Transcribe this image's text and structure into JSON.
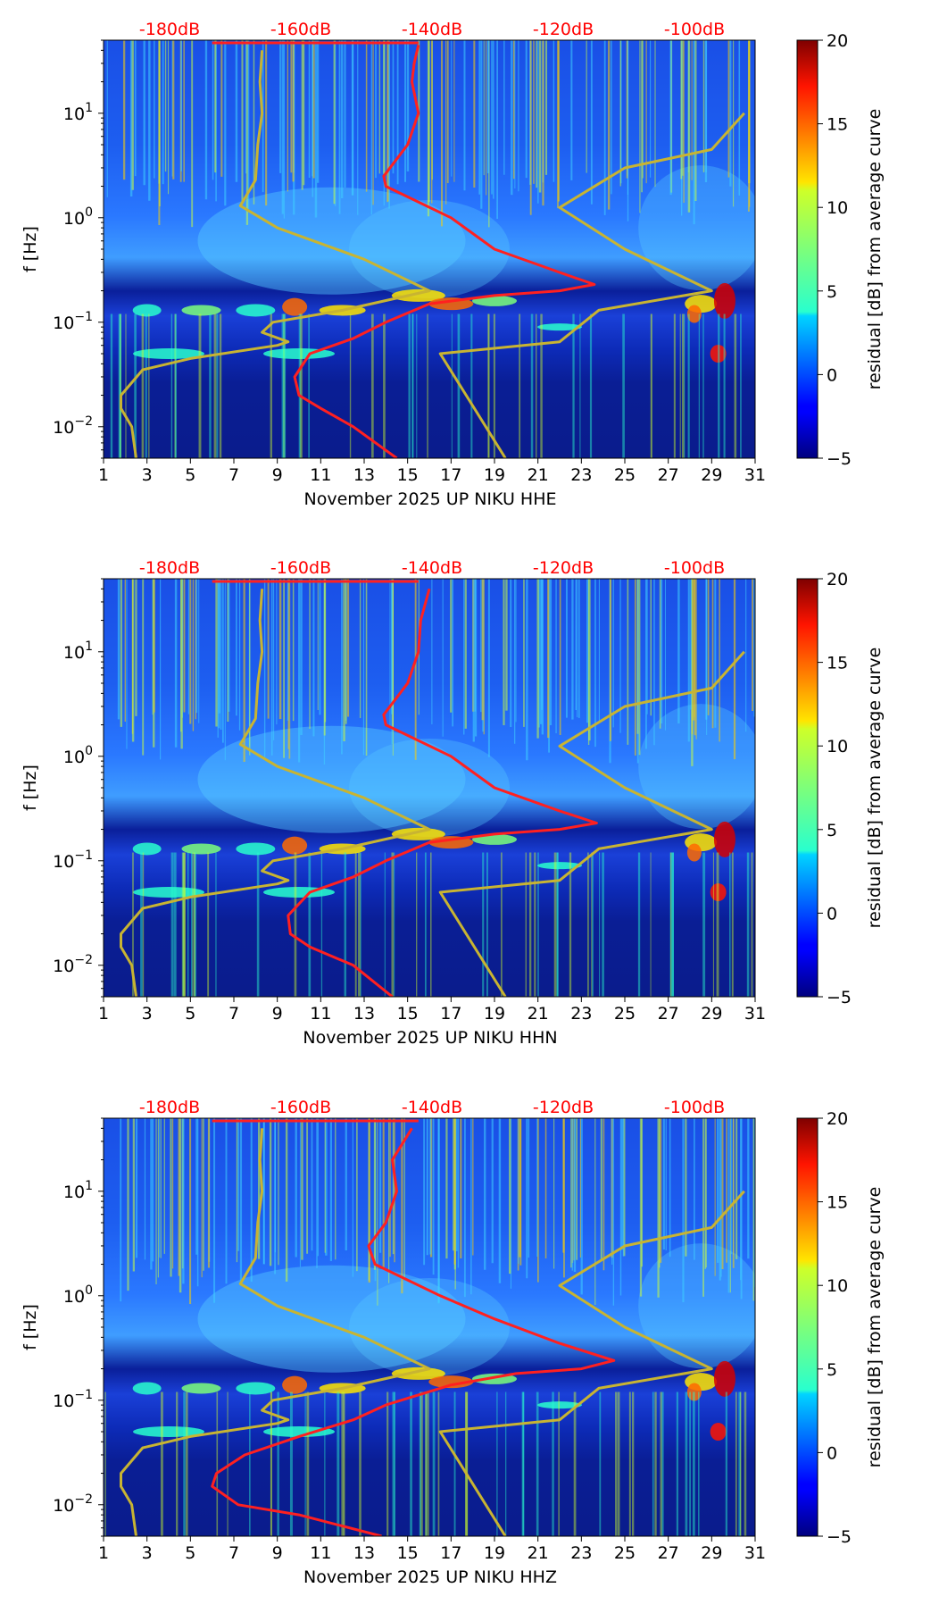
{
  "chart_data": [
    {
      "type": "heatmap",
      "xlabel": "November 2025 UP NIKU  HHE",
      "ylabel": "f [Hz]",
      "x_ticks": [
        "1",
        "3",
        "5",
        "7",
        "9",
        "11",
        "13",
        "15",
        "17",
        "19",
        "21",
        "23",
        "25",
        "27",
        "29",
        "31"
      ],
      "xlim": [
        1,
        31
      ],
      "y_scale": "log",
      "ylim": [
        0.005,
        50
      ],
      "y_ticks": [
        {
          "base": "10",
          "exp": "1",
          "value": 10
        },
        {
          "base": "10",
          "exp": "0",
          "value": 1
        },
        {
          "base": "10",
          "exp": "−1",
          "value": 0.1
        },
        {
          "base": "10",
          "exp": "−2",
          "value": 0.01
        }
      ],
      "db_labels": [
        "-180dB",
        "-160dB",
        "-140dB",
        "-120dB",
        "-100dB"
      ],
      "colorbar": {
        "label": "residual [dB] from average curve",
        "range": [
          -5,
          20
        ],
        "ticks": [
          "20",
          "15",
          "10",
          "5",
          "0",
          "−5"
        ],
        "colormap": "jet"
      },
      "series": [
        {
          "color": "#ff2020",
          "points": [
            [
              14.5,
              0.005
            ],
            [
              12.5,
              0.01
            ],
            [
              11,
              0.015
            ],
            [
              10,
              0.02
            ],
            [
              9.8,
              0.03
            ],
            [
              10.5,
              0.05
            ],
            [
              12.5,
              0.07
            ],
            [
              14,
              0.1
            ],
            [
              16,
              0.15
            ],
            [
              19,
              0.18
            ],
            [
              22,
              0.2
            ],
            [
              23.6,
              0.23
            ],
            [
              22,
              0.3
            ],
            [
              19,
              0.5
            ],
            [
              17,
              1
            ],
            [
              14,
              2
            ],
            [
              13.9,
              2.5
            ],
            [
              15,
              5
            ],
            [
              15.5,
              10
            ],
            [
              15.2,
              20
            ],
            [
              15.3,
              30
            ],
            [
              15.5,
              45
            ]
          ]
        },
        {
          "color": "#c8b432",
          "points": [
            [
              2.5,
              0.005
            ],
            [
              2.3,
              0.01
            ],
            [
              1.8,
              0.015
            ],
            [
              1.8,
              0.02
            ],
            [
              2.8,
              0.035
            ],
            [
              5,
              0.045
            ],
            [
              9,
              0.06
            ],
            [
              9.5,
              0.065
            ],
            [
              8.3,
              0.08
            ],
            [
              8.8,
              0.1
            ],
            [
              12,
              0.13
            ],
            [
              16,
              0.2
            ],
            [
              13,
              0.4
            ],
            [
              9,
              0.8
            ],
            [
              7.3,
              1.3
            ],
            [
              8,
              2.3
            ],
            [
              8.1,
              5
            ],
            [
              8.3,
              10
            ],
            [
              8.2,
              20
            ],
            [
              8.3,
              40
            ]
          ]
        },
        {
          "color": "#c8b432",
          "points": [
            [
              19.5,
              0.005
            ],
            [
              16.5,
              0.05
            ],
            [
              22,
              0.065
            ],
            [
              23.8,
              0.13
            ],
            [
              29,
              0.2
            ],
            [
              25,
              0.5
            ],
            [
              22,
              1.25
            ],
            [
              25,
              3
            ],
            [
              29,
              4.5
            ],
            [
              30.5,
              10
            ]
          ]
        }
      ]
    },
    {
      "type": "heatmap",
      "xlabel": "November 2025 UP NIKU  HHN",
      "ylabel": "f [Hz]",
      "x_ticks": [
        "1",
        "3",
        "5",
        "7",
        "9",
        "11",
        "13",
        "15",
        "17",
        "19",
        "21",
        "23",
        "25",
        "27",
        "29",
        "31"
      ],
      "xlim": [
        1,
        31
      ],
      "y_scale": "log",
      "ylim": [
        0.005,
        50
      ],
      "y_ticks": [
        {
          "base": "10",
          "exp": "1",
          "value": 10
        },
        {
          "base": "10",
          "exp": "0",
          "value": 1
        },
        {
          "base": "10",
          "exp": "−1",
          "value": 0.1
        },
        {
          "base": "10",
          "exp": "−2",
          "value": 0.01
        }
      ],
      "db_labels": [
        "-180dB",
        "-160dB",
        "-140dB",
        "-120dB",
        "-100dB"
      ],
      "colorbar": {
        "label": "residual [dB] from average curve",
        "range": [
          -5,
          20
        ],
        "ticks": [
          "20",
          "15",
          "10",
          "5",
          "0",
          "−5"
        ],
        "colormap": "jet"
      },
      "series": [
        {
          "color": "#ff2020",
          "points": [
            [
              14.3,
              0.005
            ],
            [
              12.5,
              0.01
            ],
            [
              10.5,
              0.015
            ],
            [
              9.6,
              0.02
            ],
            [
              9.5,
              0.03
            ],
            [
              10.5,
              0.05
            ],
            [
              12.5,
              0.07
            ],
            [
              14,
              0.1
            ],
            [
              16,
              0.15
            ],
            [
              19,
              0.18
            ],
            [
              22,
              0.2
            ],
            [
              23.7,
              0.23
            ],
            [
              22,
              0.3
            ],
            [
              19,
              0.5
            ],
            [
              17,
              1
            ],
            [
              14,
              2
            ],
            [
              13.9,
              2.5
            ],
            [
              15,
              5
            ],
            [
              15.5,
              10
            ],
            [
              15.6,
              20
            ],
            [
              16,
              40
            ]
          ]
        },
        {
          "color": "#c8b432",
          "points": [
            [
              2.5,
              0.005
            ],
            [
              2.3,
              0.01
            ],
            [
              1.8,
              0.015
            ],
            [
              1.8,
              0.02
            ],
            [
              2.8,
              0.035
            ],
            [
              5,
              0.045
            ],
            [
              9,
              0.06
            ],
            [
              9.5,
              0.065
            ],
            [
              8.3,
              0.08
            ],
            [
              8.8,
              0.1
            ],
            [
              12,
              0.13
            ],
            [
              16,
              0.2
            ],
            [
              13,
              0.4
            ],
            [
              9,
              0.8
            ],
            [
              7.3,
              1.3
            ],
            [
              8,
              2.3
            ],
            [
              8.1,
              5
            ],
            [
              8.3,
              10
            ],
            [
              8.2,
              20
            ],
            [
              8.3,
              40
            ]
          ]
        },
        {
          "color": "#c8b432",
          "points": [
            [
              19.5,
              0.005
            ],
            [
              16.5,
              0.05
            ],
            [
              22,
              0.065
            ],
            [
              23.8,
              0.13
            ],
            [
              29,
              0.2
            ],
            [
              25,
              0.5
            ],
            [
              22,
              1.25
            ],
            [
              25,
              3
            ],
            [
              29,
              4.5
            ],
            [
              30.5,
              10
            ]
          ]
        }
      ]
    },
    {
      "type": "heatmap",
      "xlabel": "November 2025 UP NIKU  HHZ",
      "ylabel": "f [Hz]",
      "x_ticks": [
        "1",
        "3",
        "5",
        "7",
        "9",
        "11",
        "13",
        "15",
        "17",
        "19",
        "21",
        "23",
        "25",
        "27",
        "29",
        "31"
      ],
      "xlim": [
        1,
        31
      ],
      "y_scale": "log",
      "ylim": [
        0.005,
        50
      ],
      "y_ticks": [
        {
          "base": "10",
          "exp": "1",
          "value": 10
        },
        {
          "base": "10",
          "exp": "0",
          "value": 1
        },
        {
          "base": "10",
          "exp": "−1",
          "value": 0.1
        },
        {
          "base": "10",
          "exp": "−2",
          "value": 0.01
        }
      ],
      "db_labels": [
        "-180dB",
        "-160dB",
        "-140dB",
        "-120dB",
        "-100dB"
      ],
      "colorbar": {
        "label": "residual [dB] from average curve",
        "range": [
          -5,
          20
        ],
        "ticks": [
          "20",
          "15",
          "10",
          "5",
          "0",
          "−5"
        ],
        "colormap": "jet"
      },
      "series": [
        {
          "color": "#ff2020",
          "points": [
            [
              13.8,
              0.005
            ],
            [
              10,
              0.008
            ],
            [
              7.2,
              0.01
            ],
            [
              6,
              0.015
            ],
            [
              6.2,
              0.02
            ],
            [
              7.5,
              0.03
            ],
            [
              10,
              0.045
            ],
            [
              12.5,
              0.065
            ],
            [
              14,
              0.09
            ],
            [
              17,
              0.14
            ],
            [
              20,
              0.18
            ],
            [
              23,
              0.2
            ],
            [
              24.5,
              0.24
            ],
            [
              22,
              0.35
            ],
            [
              19,
              0.6
            ],
            [
              16.5,
              1
            ],
            [
              13.5,
              2
            ],
            [
              13.2,
              3
            ],
            [
              14,
              5
            ],
            [
              14.5,
              10
            ],
            [
              14.3,
              20
            ],
            [
              15.2,
              40
            ]
          ]
        },
        {
          "color": "#c8b432",
          "points": [
            [
              2.5,
              0.005
            ],
            [
              2.3,
              0.01
            ],
            [
              1.8,
              0.015
            ],
            [
              1.8,
              0.02
            ],
            [
              2.8,
              0.035
            ],
            [
              5,
              0.045
            ],
            [
              9,
              0.06
            ],
            [
              9.5,
              0.065
            ],
            [
              8.3,
              0.08
            ],
            [
              8.8,
              0.1
            ],
            [
              12,
              0.13
            ],
            [
              16,
              0.2
            ],
            [
              13,
              0.4
            ],
            [
              9,
              0.8
            ],
            [
              7.3,
              1.3
            ],
            [
              8,
              2.3
            ],
            [
              8.1,
              5
            ],
            [
              8.3,
              10
            ],
            [
              8.2,
              20
            ],
            [
              8.3,
              40
            ]
          ]
        },
        {
          "color": "#c8b432",
          "points": [
            [
              19.5,
              0.005
            ],
            [
              16.5,
              0.05
            ],
            [
              22,
              0.065
            ],
            [
              23.8,
              0.13
            ],
            [
              29,
              0.2
            ],
            [
              25,
              0.5
            ],
            [
              22,
              1.25
            ],
            [
              25,
              3
            ],
            [
              29,
              4.5
            ],
            [
              30.5,
              10
            ]
          ]
        }
      ]
    }
  ]
}
